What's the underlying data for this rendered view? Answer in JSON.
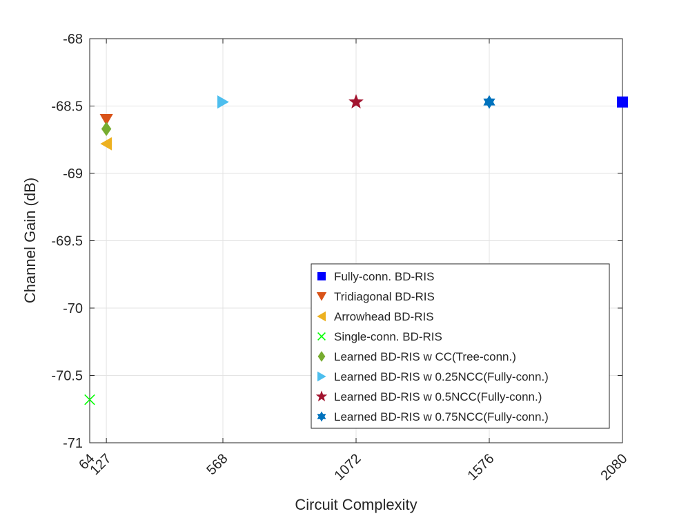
{
  "chart_data": {
    "type": "scatter",
    "title": "",
    "xlabel": "Circuit Complexity",
    "ylabel": "Channel Gain (dB)",
    "x_ticks": [
      {
        "value": 64,
        "label": "64"
      },
      {
        "value": 127,
        "label": "127"
      },
      {
        "value": 568,
        "label": "568"
      },
      {
        "value": 1072,
        "label": "1072"
      },
      {
        "value": 1576,
        "label": "1576"
      },
      {
        "value": 2080,
        "label": "2080"
      }
    ],
    "y_ticks": [
      {
        "value": -68,
        "label": "-68"
      },
      {
        "value": -68.5,
        "label": "-68.5"
      },
      {
        "value": -69,
        "label": "-69"
      },
      {
        "value": -69.5,
        "label": "-69.5"
      },
      {
        "value": -70,
        "label": "-70"
      },
      {
        "value": -70.5,
        "label": "-70.5"
      },
      {
        "value": -71,
        "label": "-71"
      }
    ],
    "xlim": [
      64,
      2080
    ],
    "ylim": [
      -71,
      -68
    ],
    "grid": true,
    "legend_position": "bottom-right",
    "series": [
      {
        "name": "Fully-conn. BD-RIS",
        "marker": "square",
        "color": "#0000FF",
        "x": [
          2080
        ],
        "y": [
          -68.47
        ]
      },
      {
        "name": "Tridiagonal BD-RIS",
        "marker": "triangle-down",
        "color": "#D95319",
        "x": [
          127
        ],
        "y": [
          -68.6
        ]
      },
      {
        "name": "Arrowhead BD-RIS",
        "marker": "triangle-left",
        "color": "#EDB120",
        "x": [
          127
        ],
        "y": [
          -68.78
        ]
      },
      {
        "name": "Single-conn. BD-RIS",
        "marker": "x",
        "color": "#00FF00",
        "x": [
          64
        ],
        "y": [
          -70.68
        ]
      },
      {
        "name": "Learned BD-RIS w CC(Tree-conn.)",
        "marker": "diamond",
        "color": "#77AC30",
        "x": [
          127
        ],
        "y": [
          -68.67
        ]
      },
      {
        "name": "Learned BD-RIS w 0.25NCC(Fully-conn.)",
        "marker": "triangle-right",
        "color": "#4DBEEE",
        "x": [
          568
        ],
        "y": [
          -68.47
        ]
      },
      {
        "name": "Learned BD-RIS w 0.5NCC(Fully-conn.)",
        "marker": "pentagram",
        "color": "#A2142F",
        "x": [
          1072
        ],
        "y": [
          -68.47
        ]
      },
      {
        "name": "Learned BD-RIS w 0.75NCC(Fully-conn.)",
        "marker": "hexagram",
        "color": "#0072BD",
        "x": [
          1576
        ],
        "y": [
          -68.47
        ]
      }
    ]
  }
}
